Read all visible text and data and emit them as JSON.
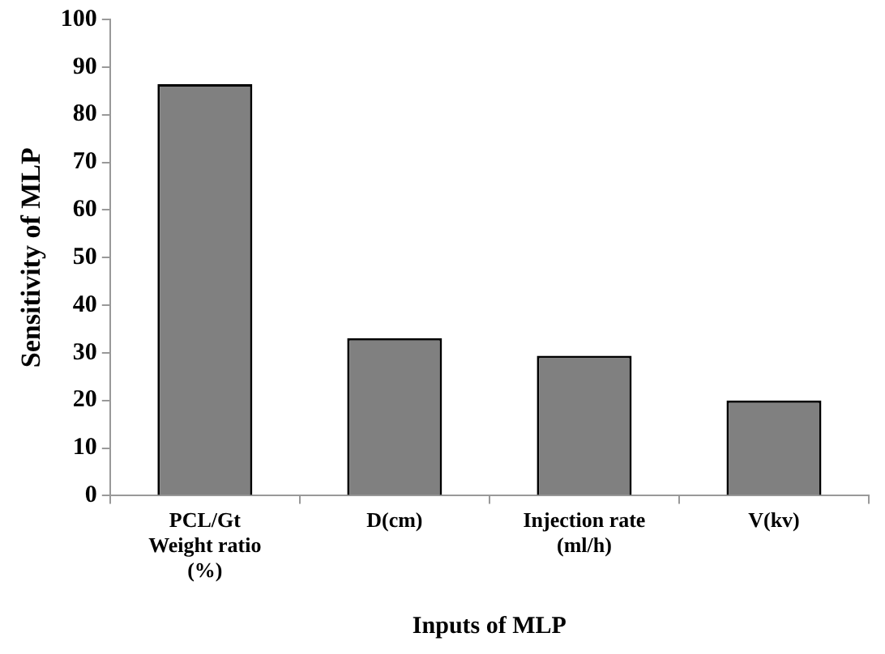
{
  "chart_data": {
    "type": "bar",
    "xlabel": "Inputs of MLP",
    "ylabel": "Sensitivity of MLP",
    "categories": [
      "PCL/Gt Weight ratio (%)",
      "D(cm)",
      "Injection rate (ml/h)",
      "V(kv)"
    ],
    "values": [
      86.4,
      33.1,
      29.4,
      20.0
    ],
    "color": "#808080",
    "ylim": [
      0,
      100
    ],
    "yticks": [
      0,
      10,
      20,
      30,
      40,
      50,
      60,
      70,
      80,
      90,
      100
    ],
    "grid": false,
    "legend": false
  }
}
